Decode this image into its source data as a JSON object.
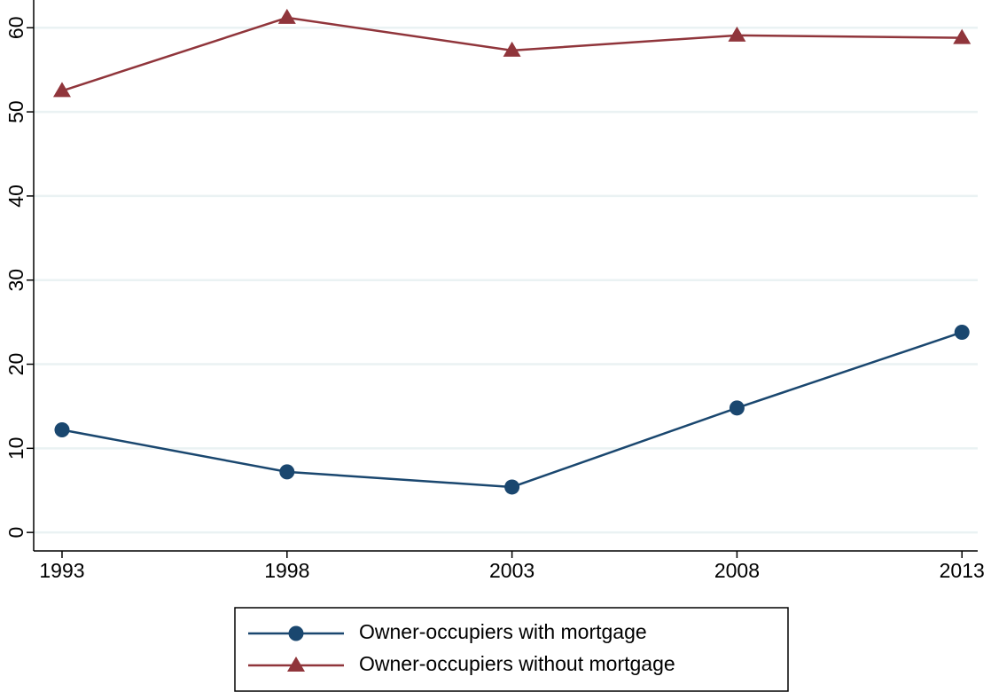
{
  "chart_data": {
    "type": "line",
    "x": [
      1993,
      1998,
      2003,
      2008,
      2013
    ],
    "xlim": [
      1992.37,
      2013.35
    ],
    "xticks": [
      1993,
      1998,
      2003,
      2008,
      2013
    ],
    "ylim": [
      -2.2,
      63.3
    ],
    "yticks": [
      0,
      10,
      20,
      30,
      40,
      50,
      60
    ],
    "grid": true,
    "series": [
      {
        "name": "Owner-occupiers with mortgage",
        "color": "#1a476f",
        "marker": "circle",
        "values": [
          12.2,
          7.2,
          5.4,
          14.8,
          23.8
        ]
      },
      {
        "name": "Owner-occupiers without mortgage",
        "color": "#90353b",
        "marker": "triangle",
        "values": [
          52.5,
          61.2,
          57.3,
          59.1,
          58.8
        ]
      }
    ]
  }
}
